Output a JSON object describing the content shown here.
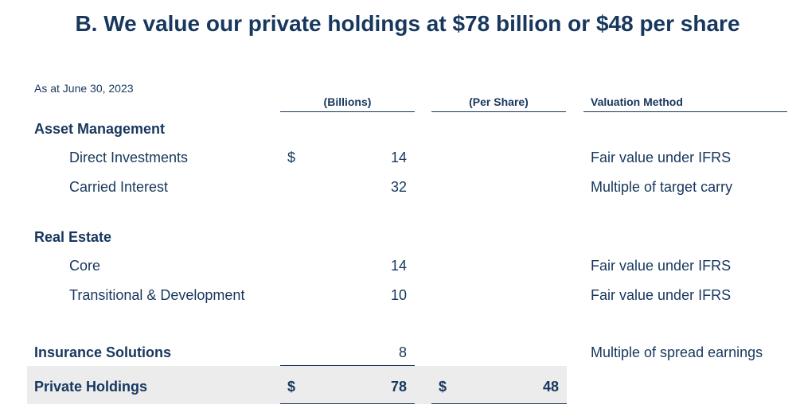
{
  "title": "B. We value our private holdings at $78 billion or $48 per share",
  "as_at": "As at June 30, 2023",
  "columns": {
    "billions": "(Billions)",
    "per_share": "(Per Share)",
    "valuation_method": "Valuation Method"
  },
  "sections": {
    "asset_management": {
      "label": "Asset Management",
      "direct_investments": {
        "label": "Direct Investments",
        "currency": "$",
        "billions": "14",
        "method": "Fair value under IFRS"
      },
      "carried_interest": {
        "label": "Carried Interest",
        "billions": "32",
        "method": "Multiple of target carry"
      }
    },
    "real_estate": {
      "label": "Real Estate",
      "core": {
        "label": "Core",
        "billions": "14",
        "method": "Fair value under IFRS"
      },
      "transitional": {
        "label": "Transitional & Development",
        "billions": "10",
        "method": "Fair value under IFRS"
      }
    },
    "insurance_solutions": {
      "label": "Insurance Solutions",
      "billions": "8",
      "method": "Multiple of spread earnings"
    }
  },
  "total": {
    "label": "Private Holdings",
    "currency": "$",
    "billions": "78",
    "per_share_currency": "$",
    "per_share": "48"
  }
}
